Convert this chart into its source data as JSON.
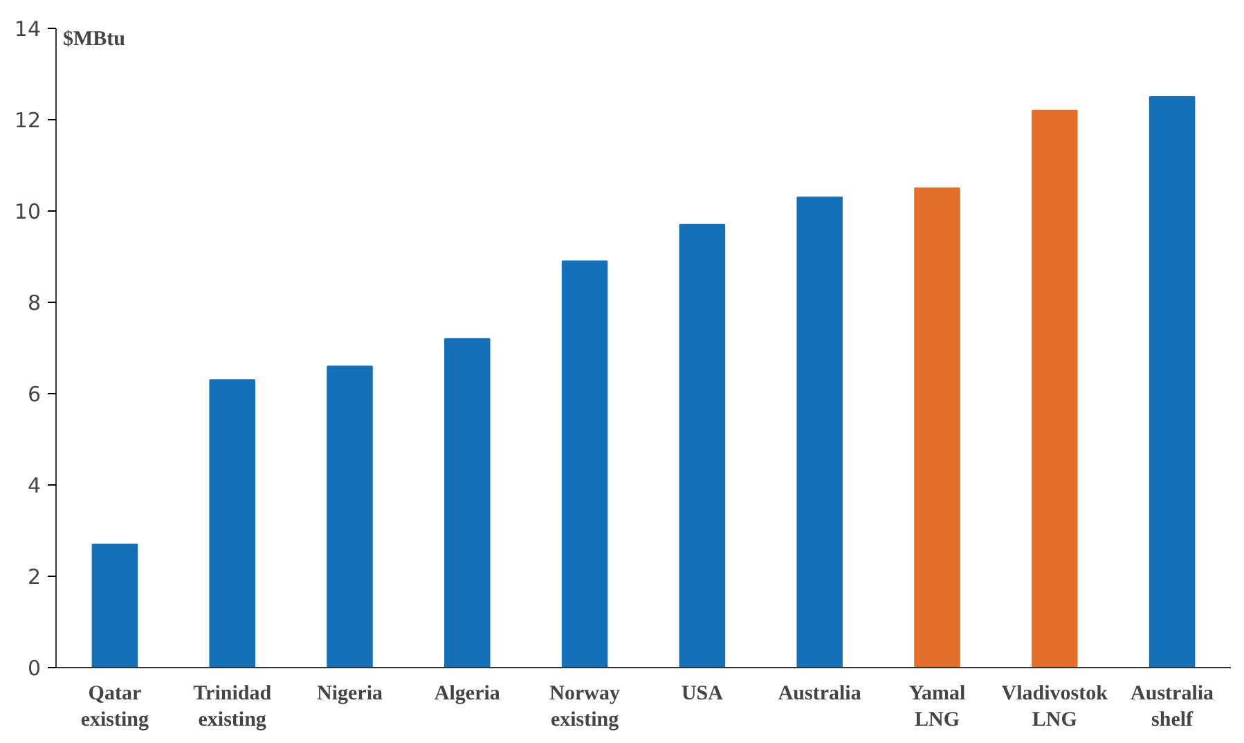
{
  "chart_data": {
    "type": "bar",
    "ylabel": "$MBtu",
    "categories": [
      "Qatar\nexisting",
      "Trinidad\nexisting",
      "Nigeria",
      "Algeria",
      "Norway\nexisting",
      "USA",
      "Australia",
      "Yamal\nLNG",
      "Vladivostok\nLNG",
      "Australia\nshelf"
    ],
    "values": [
      2.7,
      6.3,
      6.6,
      7.2,
      8.9,
      9.7,
      10.3,
      10.5,
      12.2,
      12.5
    ],
    "colors": [
      "#1570b8",
      "#1570b8",
      "#1570b8",
      "#1570b8",
      "#1570b8",
      "#1570b8",
      "#1570b8",
      "#e46f2a",
      "#e46f2a",
      "#1570b8"
    ],
    "ylim": [
      0,
      14
    ],
    "yticks": [
      0,
      2,
      4,
      6,
      8,
      10,
      12,
      14
    ],
    "grid": false
  }
}
